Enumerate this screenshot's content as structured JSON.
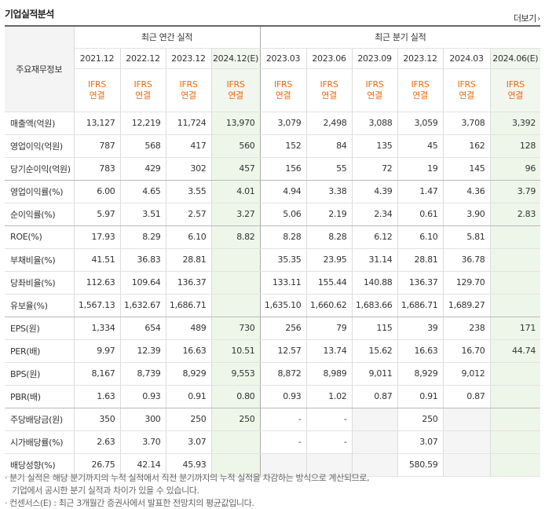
{
  "header": {
    "title": "기업실적분석",
    "more_label": "더보기"
  },
  "columns": {
    "row_header_label": "주요재무정보",
    "annual_group": "최근 연간 실적",
    "quarter_group": "최근 분기 실적",
    "periods": [
      "2021.12",
      "2022.12",
      "2023.12",
      "2024.12(E)",
      "2023.03",
      "2023.06",
      "2023.09",
      "2023.12",
      "2024.03",
      "2024.06(E)"
    ],
    "ifrs_top": "IFRS",
    "ifrs_bottom": "연결"
  },
  "rows": [
    {
      "label": "매출액(억원)",
      "values": [
        "13,127",
        "12,219",
        "11,724",
        "13,970",
        "3,079",
        "2,498",
        "3,088",
        "3,059",
        "3,708",
        "3,392"
      ]
    },
    {
      "label": "영업이익(억원)",
      "values": [
        "787",
        "568",
        "417",
        "560",
        "152",
        "84",
        "135",
        "45",
        "162",
        "128"
      ]
    },
    {
      "label": "당기순이익(억원)",
      "values": [
        "783",
        "429",
        "302",
        "457",
        "156",
        "55",
        "72",
        "19",
        "145",
        "96"
      ]
    },
    {
      "label": "영업이익률(%)",
      "values": [
        "6.00",
        "4.65",
        "3.55",
        "4.01",
        "4.94",
        "3.38",
        "4.39",
        "1.47",
        "4.36",
        "3.79"
      ]
    },
    {
      "label": "순이익률(%)",
      "values": [
        "5.97",
        "3.51",
        "2.57",
        "3.27",
        "5.06",
        "2.19",
        "2.34",
        "0.61",
        "3.90",
        "2.83"
      ]
    },
    {
      "label": "ROE(%)",
      "values": [
        "17.93",
        "8.29",
        "6.10",
        "8.82",
        "8.28",
        "8.28",
        "6.12",
        "6.10",
        "5.81",
        ""
      ]
    },
    {
      "label": "부채비율(%)",
      "values": [
        "41.51",
        "36.83",
        "28.81",
        "",
        "35.35",
        "23.95",
        "31.14",
        "28.81",
        "36.78",
        ""
      ]
    },
    {
      "label": "당좌비율(%)",
      "values": [
        "112.63",
        "109.64",
        "136.37",
        "",
        "133.11",
        "155.44",
        "140.88",
        "136.37",
        "129.70",
        ""
      ]
    },
    {
      "label": "유보율(%)",
      "values": [
        "1,567.13",
        "1,632.67",
        "1,686.71",
        "",
        "1,635.10",
        "1,660.62",
        "1,683.66",
        "1,686.71",
        "1,689.27",
        ""
      ]
    },
    {
      "label": "EPS(원)",
      "values": [
        "1,334",
        "654",
        "489",
        "730",
        "256",
        "79",
        "115",
        "39",
        "238",
        "171"
      ]
    },
    {
      "label": "PER(배)",
      "values": [
        "9.97",
        "12.39",
        "16.63",
        "10.51",
        "12.57",
        "13.74",
        "15.62",
        "16.63",
        "16.70",
        "44.74"
      ]
    },
    {
      "label": "BPS(원)",
      "values": [
        "8,167",
        "8,739",
        "8,929",
        "9,553",
        "8,872",
        "8,989",
        "9,011",
        "8,929",
        "9,012",
        ""
      ]
    },
    {
      "label": "PBR(배)",
      "values": [
        "1.63",
        "0.93",
        "0.91",
        "0.80",
        "0.93",
        "1.02",
        "0.87",
        "0.91",
        "0.87",
        ""
      ]
    },
    {
      "label": "주당배당금(원)",
      "values": [
        "350",
        "300",
        "250",
        "250",
        "-",
        "-",
        "",
        "250",
        "",
        ""
      ]
    },
    {
      "label": "시가배당률(%)",
      "values": [
        "2.63",
        "3.70",
        "3.07",
        "",
        "-",
        "-",
        "",
        "3.07",
        "",
        ""
      ]
    },
    {
      "label": "배당성향(%)",
      "values": [
        "26.75",
        "42.14",
        "45.93",
        "",
        "",
        "",
        "",
        "580.59",
        "",
        ""
      ]
    }
  ],
  "notes": {
    "line1": "분기 실적은 해당 분기까지의 누적 실적에서 직전 분기까지의 누적 실적을 차감하는 방식으로 계산되므로,",
    "line2": "기업에서 공시한 분기 실적과 차이가 있을 수 있습니다.",
    "line3": "컨센서스(E) : 최근 3개월간 증권사에서 발표한 전망치의 평균값입니다."
  }
}
